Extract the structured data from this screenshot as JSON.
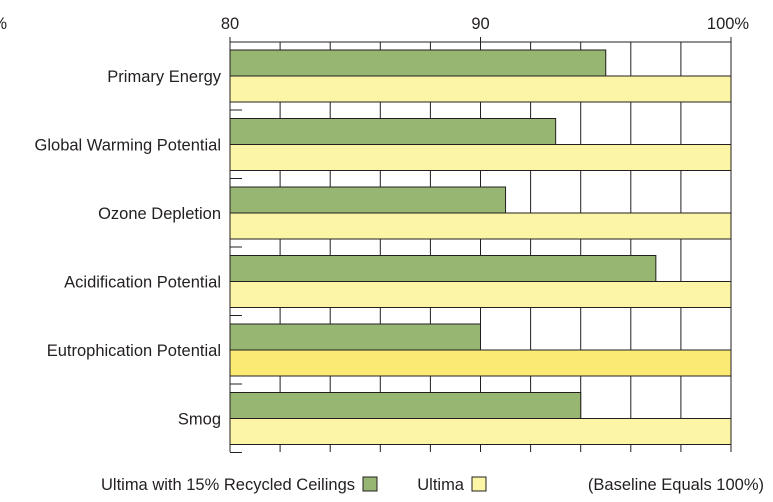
{
  "chart_data": {
    "type": "bar",
    "orientation": "horizontal",
    "categories": [
      "Primary Energy",
      "Global Warming Potential",
      "Ozone Depletion",
      "Acidification Potential",
      "Eutrophication Potential",
      "Smog"
    ],
    "series": [
      {
        "name": "Ultima with 15% Recycled Ceilings",
        "color": "#97b672",
        "values": [
          95,
          93,
          91,
          97,
          90,
          94
        ]
      },
      {
        "name": "Ultima",
        "color": "#fcf5a6",
        "values": [
          100,
          100,
          100,
          100,
          100,
          100
        ]
      }
    ],
    "highlight_color": "#fbeb75",
    "x_ticks": [
      "%",
      "80",
      "90",
      "100%"
    ],
    "xlim": [
      80,
      100
    ],
    "grid": true,
    "note": "(Baseline Equals 100%)",
    "legend_position": "bottom"
  }
}
